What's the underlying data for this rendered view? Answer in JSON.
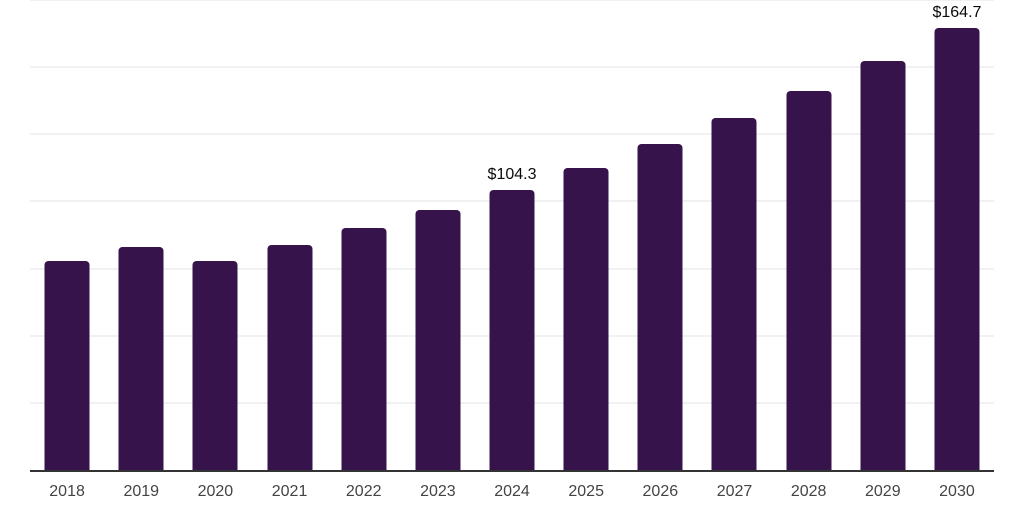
{
  "chart_data": {
    "type": "bar",
    "title": "",
    "xlabel": "",
    "ylabel": "",
    "categories": [
      "2018",
      "2019",
      "2020",
      "2021",
      "2022",
      "2023",
      "2024",
      "2025",
      "2026",
      "2027",
      "2028",
      "2029",
      "2030"
    ],
    "values": [
      77.9,
      83.1,
      77.8,
      83.8,
      90.0,
      96.9,
      104.3,
      112.5,
      121.4,
      131.0,
      141.2,
      152.4,
      164.7
    ],
    "data_labels": {
      "2024": "$104.3",
      "2030": "$164.7"
    },
    "ylim": [
      0,
      175
    ],
    "gridline_step": 25,
    "grid": true,
    "legend": false,
    "colors": {
      "bar": "#36134a",
      "axis_line": "#333333",
      "gridline": "#f1f1f1",
      "tick_label": "#444444",
      "data_label": "#0a0a0a",
      "background": "#ffffff"
    }
  }
}
